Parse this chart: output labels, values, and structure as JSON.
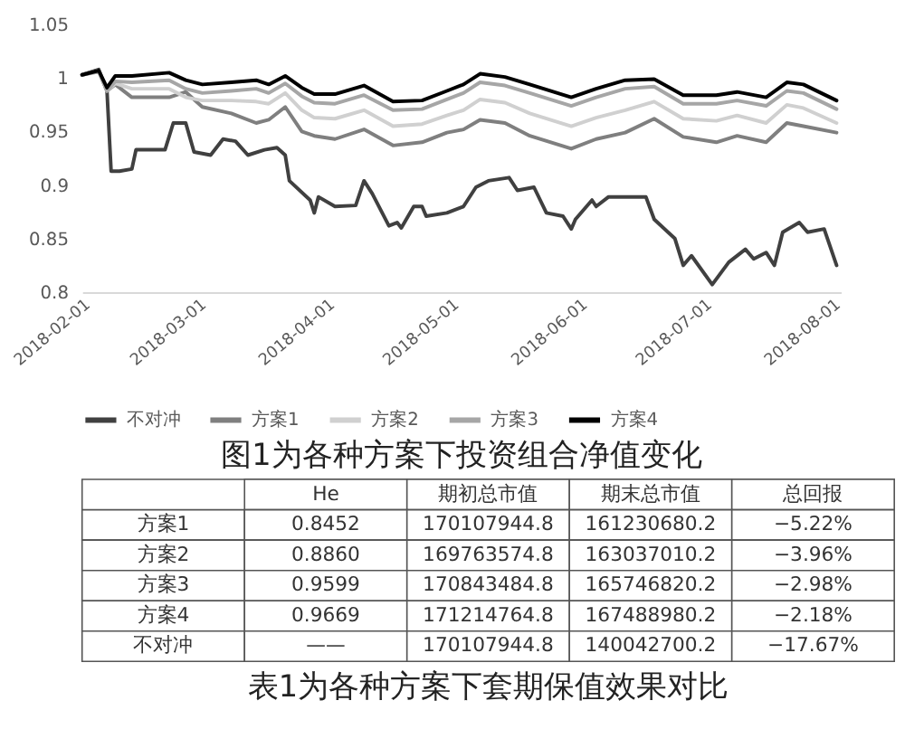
{
  "chart_data": [
    {
      "type": "line",
      "title": "图1为各种方案下投资组合净值变化",
      "legend": "bottom",
      "ylim": [
        0.8,
        1.05
      ],
      "yticks": [
        0.8,
        0.85,
        0.9,
        0.95,
        1,
        1.05
      ],
      "xlim": [
        "2018-02-01",
        "2018-08-03"
      ],
      "xticks": [
        "2018-02-01",
        "2018-03-01",
        "2018-04-01",
        "2018-05-01",
        "2018-06-01",
        "2018-07-01",
        "2018-08-01"
      ],
      "series": [
        {
          "name": "不对冲",
          "color": "#404040",
          "x": [
            "2018-02-01",
            "2018-02-05",
            "2018-02-07",
            "2018-02-08",
            "2018-02-10",
            "2018-02-13",
            "2018-02-14",
            "2018-02-21",
            "2018-02-23",
            "2018-02-26",
            "2018-02-28",
            "2018-03-04",
            "2018-03-07",
            "2018-03-10",
            "2018-03-13",
            "2018-03-17",
            "2018-03-20",
            "2018-03-22",
            "2018-03-23",
            "2018-03-28",
            "2018-03-29",
            "2018-03-30",
            "2018-04-03",
            "2018-04-08",
            "2018-04-10",
            "2018-04-12",
            "2018-04-16",
            "2018-04-18",
            "2018-04-19",
            "2018-04-22",
            "2018-04-24",
            "2018-04-25",
            "2018-04-30",
            "2018-05-04",
            "2018-05-07",
            "2018-05-10",
            "2018-05-15",
            "2018-05-17",
            "2018-05-21",
            "2018-05-24",
            "2018-05-28",
            "2018-05-30",
            "2018-05-31",
            "2018-06-04",
            "2018-06-05",
            "2018-06-08",
            "2018-06-17",
            "2018-06-19",
            "2018-06-24",
            "2018-06-26",
            "2018-06-28",
            "2018-07-03",
            "2018-07-07",
            "2018-07-11",
            "2018-07-13",
            "2018-07-16",
            "2018-07-18",
            "2018-07-20",
            "2018-07-24",
            "2018-07-26",
            "2018-07-30",
            "2018-08-02"
          ],
          "values": [
            1.003,
            1.008,
            0.988,
            0.913,
            0.913,
            0.915,
            0.933,
            0.933,
            0.958,
            0.958,
            0.931,
            0.928,
            0.943,
            0.941,
            0.928,
            0.933,
            0.935,
            0.928,
            0.904,
            0.886,
            0.874,
            0.889,
            0.88,
            0.881,
            0.904,
            0.892,
            0.862,
            0.865,
            0.86,
            0.88,
            0.88,
            0.871,
            0.874,
            0.88,
            0.898,
            0.904,
            0.907,
            0.895,
            0.898,
            0.874,
            0.871,
            0.859,
            0.868,
            0.886,
            0.88,
            0.889,
            0.889,
            0.868,
            0.85,
            0.825,
            0.834,
            0.807,
            0.828,
            0.84,
            0.831,
            0.837,
            0.825,
            0.856,
            0.865,
            0.856,
            0.859,
            0.825
          ]
        },
        {
          "name": "方案1",
          "color": "#7f7f7f",
          "x": [
            "2018-02-01",
            "2018-02-05",
            "2018-02-07",
            "2018-02-09",
            "2018-02-13",
            "2018-02-22",
            "2018-02-26",
            "2018-03-02",
            "2018-03-09",
            "2018-03-15",
            "2018-03-18",
            "2018-03-22",
            "2018-03-26",
            "2018-03-29",
            "2018-04-03",
            "2018-04-10",
            "2018-04-17",
            "2018-04-24",
            "2018-04-30",
            "2018-05-04",
            "2018-05-08",
            "2018-05-14",
            "2018-05-20",
            "2018-05-30",
            "2018-06-05",
            "2018-06-12",
            "2018-06-19",
            "2018-06-26",
            "2018-07-04",
            "2018-07-09",
            "2018-07-16",
            "2018-07-21",
            "2018-07-25",
            "2018-08-02"
          ],
          "values": [
            1.003,
            1.007,
            0.988,
            0.994,
            0.982,
            0.982,
            0.987,
            0.973,
            0.967,
            0.958,
            0.961,
            0.973,
            0.95,
            0.946,
            0.943,
            0.952,
            0.937,
            0.94,
            0.949,
            0.952,
            0.961,
            0.958,
            0.946,
            0.934,
            0.943,
            0.949,
            0.962,
            0.945,
            0.94,
            0.946,
            0.94,
            0.958,
            0.955,
            0.949
          ]
        },
        {
          "name": "方案2",
          "color": "#d0d0d0",
          "x": [
            "2018-02-01",
            "2018-02-05",
            "2018-02-07",
            "2018-02-09",
            "2018-02-13",
            "2018-02-22",
            "2018-02-26",
            "2018-03-02",
            "2018-03-09",
            "2018-03-15",
            "2018-03-18",
            "2018-03-22",
            "2018-03-26",
            "2018-03-29",
            "2018-04-03",
            "2018-04-10",
            "2018-04-17",
            "2018-04-24",
            "2018-04-30",
            "2018-05-04",
            "2018-05-08",
            "2018-05-14",
            "2018-05-20",
            "2018-05-30",
            "2018-06-05",
            "2018-06-12",
            "2018-06-19",
            "2018-06-26",
            "2018-07-04",
            "2018-07-09",
            "2018-07-16",
            "2018-07-21",
            "2018-07-25",
            "2018-08-02"
          ],
          "values": [
            1.003,
            1.007,
            0.988,
            0.995,
            0.99,
            0.99,
            0.982,
            0.979,
            0.979,
            0.978,
            0.976,
            0.986,
            0.97,
            0.963,
            0.962,
            0.97,
            0.955,
            0.957,
            0.965,
            0.97,
            0.98,
            0.977,
            0.967,
            0.955,
            0.963,
            0.97,
            0.978,
            0.962,
            0.96,
            0.965,
            0.958,
            0.975,
            0.972,
            0.958
          ]
        },
        {
          "name": "方案3",
          "color": "#a6a6a6",
          "x": [
            "2018-02-01",
            "2018-02-05",
            "2018-02-07",
            "2018-02-09",
            "2018-02-13",
            "2018-02-22",
            "2018-02-26",
            "2018-03-02",
            "2018-03-09",
            "2018-03-15",
            "2018-03-18",
            "2018-03-22",
            "2018-03-26",
            "2018-03-29",
            "2018-04-03",
            "2018-04-10",
            "2018-04-17",
            "2018-04-24",
            "2018-04-30",
            "2018-05-04",
            "2018-05-08",
            "2018-05-14",
            "2018-05-20",
            "2018-05-30",
            "2018-06-05",
            "2018-06-12",
            "2018-06-19",
            "2018-06-26",
            "2018-07-04",
            "2018-07-09",
            "2018-07-16",
            "2018-07-21",
            "2018-07-25",
            "2018-08-02"
          ],
          "values": [
            1.003,
            1.006,
            0.988,
            0.997,
            0.996,
            0.998,
            0.99,
            0.986,
            0.988,
            0.99,
            0.986,
            0.995,
            0.983,
            0.977,
            0.976,
            0.984,
            0.97,
            0.971,
            0.98,
            0.986,
            0.996,
            0.993,
            0.986,
            0.974,
            0.982,
            0.99,
            0.992,
            0.976,
            0.976,
            0.979,
            0.974,
            0.988,
            0.986,
            0.971
          ]
        },
        {
          "name": "方案4",
          "color": "#000000",
          "x": [
            "2018-02-01",
            "2018-02-05",
            "2018-02-07",
            "2018-02-09",
            "2018-02-13",
            "2018-02-22",
            "2018-02-26",
            "2018-03-02",
            "2018-03-09",
            "2018-03-15",
            "2018-03-18",
            "2018-03-22",
            "2018-03-26",
            "2018-03-29",
            "2018-04-03",
            "2018-04-10",
            "2018-04-17",
            "2018-04-24",
            "2018-04-30",
            "2018-05-04",
            "2018-05-08",
            "2018-05-14",
            "2018-05-20",
            "2018-05-30",
            "2018-06-05",
            "2018-06-12",
            "2018-06-19",
            "2018-06-26",
            "2018-07-04",
            "2018-07-09",
            "2018-07-16",
            "2018-07-21",
            "2018-07-25",
            "2018-08-02"
          ],
          "values": [
            1.003,
            1.007,
            0.991,
            1.002,
            1.002,
            1.005,
            0.998,
            0.994,
            0.996,
            0.998,
            0.994,
            1.002,
            0.991,
            0.985,
            0.985,
            0.993,
            0.978,
            0.979,
            0.988,
            0.994,
            1.004,
            1.001,
            0.994,
            0.982,
            0.99,
            0.998,
            0.999,
            0.984,
            0.984,
            0.987,
            0.982,
            0.996,
            0.994,
            0.979
          ]
        }
      ]
    },
    {
      "type": "other",
      "title": "表1为各种方案下套期保值效果对比",
      "categories": [
        null,
        "He",
        "期初总市值",
        "期末总市值",
        "总回报"
      ],
      "y_categories": [
        "方案1",
        "方案2",
        "方案3",
        "方案4",
        "不对冲"
      ],
      "cell_labels": [
        [
          "0.8452",
          "170107944.8",
          "161230680.2",
          "−5.22%"
        ],
        [
          "0.8860",
          "169763574.8",
          "163037010.2",
          "−3.96%"
        ],
        [
          "0.9599",
          "170843484.8",
          "165746820.2",
          "−2.98%"
        ],
        [
          "0.9669",
          "171214764.8",
          "167488980.2",
          "−2.18%"
        ],
        [
          "——",
          "170107944.8",
          "140042700.2",
          "−17.67%"
        ]
      ]
    }
  ]
}
